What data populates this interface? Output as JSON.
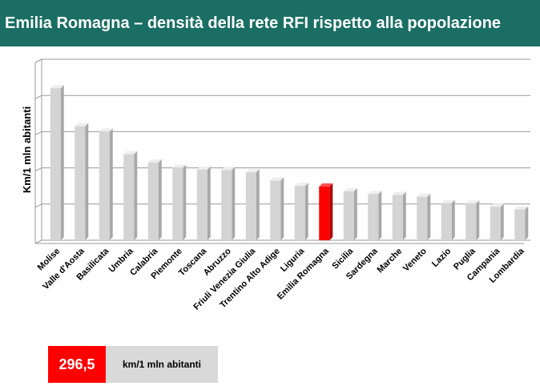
{
  "title": "Emilia Romagna – densità della rete RFI rispetto alla popolazione",
  "legend": {
    "value": "296,5",
    "unit": "km/1 mln abitanti"
  },
  "chart_data": {
    "type": "bar",
    "ylabel": "Km/1 mln abitanti",
    "categories": [
      "Molise",
      "Valle d'Aosta",
      "Basilicata",
      "Umbria",
      "Calabria",
      "Piemonte",
      "Toscana",
      "Abruzzo",
      "Friuli Venezia Giulia",
      "Trentino Alto Adige",
      "Liguria",
      "Emilia Romagna",
      "Sicilia",
      "Sardegna",
      "Marche",
      "Veneto",
      "Lazio",
      "Puglia",
      "Campania",
      "Lombardia"
    ],
    "values": [
      840,
      630,
      600,
      475,
      430,
      400,
      390,
      388,
      375,
      330,
      300,
      296.5,
      270,
      255,
      250,
      240,
      205,
      203,
      185,
      170
    ],
    "highlight": "Emilia Romagna",
    "ylim": [
      0,
      1000
    ],
    "grid": true,
    "colors": {
      "bar": "#d4d4d4",
      "highlight": "#ff0000",
      "grid": "#999999"
    }
  }
}
